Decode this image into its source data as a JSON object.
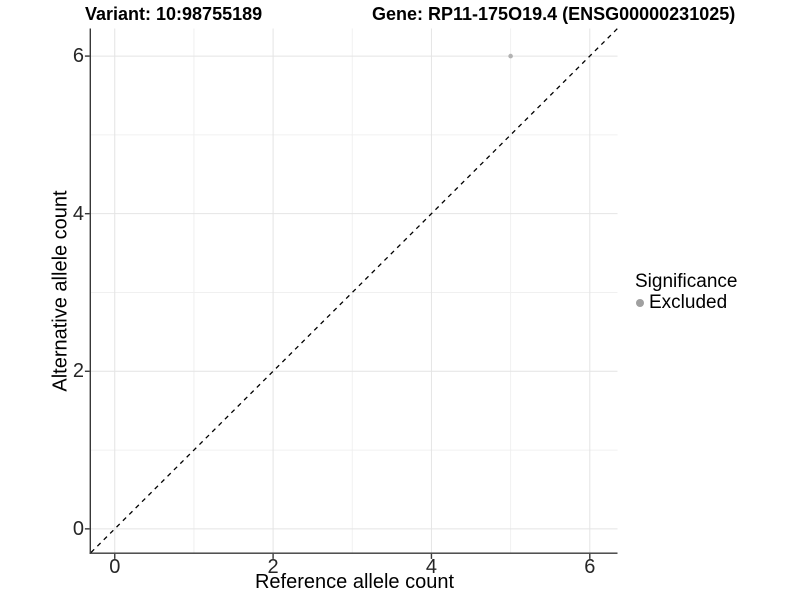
{
  "chart_data": {
    "type": "scatter",
    "title_left": "Variant: 10:98755189",
    "title_right": "Gene: RP11-175O19.4 (ENSG00000231025)",
    "xlabel": "Reference allele count",
    "ylabel": "Alternative allele count",
    "xlim": [
      -0.3,
      6.35
    ],
    "ylim": [
      -0.3,
      6.35
    ],
    "x_ticks": [
      0,
      2,
      4,
      6
    ],
    "y_ticks": [
      0,
      2,
      4,
      6
    ],
    "x_minor_ticks": [
      1,
      3,
      5
    ],
    "y_minor_ticks": [
      1,
      3,
      5
    ],
    "grid": "major and minor gridlines on, white panel background",
    "legend": {
      "title": "Significance",
      "position": "right",
      "entries": [
        {
          "label": "Excluded",
          "color": "#a0a0a0"
        }
      ]
    },
    "series": [
      {
        "name": "Excluded",
        "points": [
          {
            "x": 5,
            "y": 6
          }
        ]
      }
    ],
    "reference_line": {
      "kind": "identity y=x",
      "style": "dashed",
      "color": "#000000"
    },
    "colors": {
      "point": "#b3b3b3",
      "grid_major": "#e4e4e4",
      "grid_minor": "#f0f0f0",
      "axis": "#383838",
      "background": "#ffffff"
    }
  }
}
